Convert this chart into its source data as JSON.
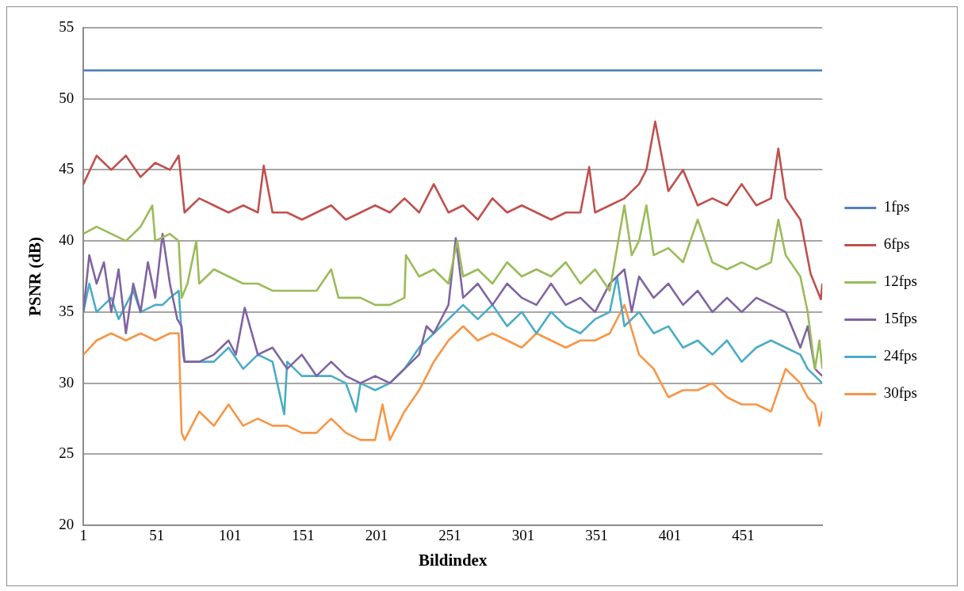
{
  "chart_data": {
    "type": "line",
    "xlabel": "Bildindex",
    "ylabel": "PSNR (dB)",
    "xlim": [
      1,
      505
    ],
    "xticks": [
      1,
      51,
      101,
      151,
      201,
      251,
      301,
      351,
      401,
      451
    ],
    "ylim": [
      20,
      55
    ],
    "yticks": [
      20,
      25,
      30,
      35,
      40,
      45,
      50,
      55
    ],
    "grid": "y",
    "legend": "right",
    "marker": "none",
    "line_style": "solid",
    "series": [
      {
        "name": "1fps",
        "color": "#4f81bd",
        "x": [
          1,
          505
        ],
        "values": [
          52,
          52
        ]
      },
      {
        "name": "6fps",
        "color": "#c0504d",
        "x": [
          1,
          10,
          20,
          30,
          40,
          50,
          60,
          66,
          70,
          80,
          90,
          100,
          110,
          120,
          124,
          130,
          140,
          150,
          160,
          170,
          180,
          190,
          200,
          210,
          220,
          230,
          240,
          250,
          260,
          270,
          280,
          290,
          300,
          310,
          320,
          330,
          340,
          346,
          350,
          360,
          370,
          380,
          385,
          391,
          400,
          410,
          420,
          430,
          440,
          450,
          460,
          470,
          475,
          480,
          490,
          497,
          504,
          505
        ],
        "values": [
          44,
          46,
          45,
          46,
          44.5,
          45.5,
          45,
          46,
          42,
          43,
          42.5,
          42,
          42.5,
          42,
          45.3,
          42,
          42,
          41.5,
          42,
          42.5,
          41.5,
          42,
          42.5,
          42,
          43,
          42,
          44,
          42,
          42.5,
          41.5,
          43,
          42,
          42.5,
          42,
          41.5,
          42,
          42,
          45.2,
          42,
          42.5,
          43,
          44,
          45,
          48.4,
          43.5,
          45,
          42.5,
          43,
          42.5,
          44,
          42.5,
          43,
          46.5,
          43,
          41.5,
          37.7,
          35.9,
          37
        ]
      },
      {
        "name": "12fps",
        "color": "#9bbb59",
        "x": [
          1,
          10,
          20,
          30,
          40,
          48,
          50,
          60,
          66,
          68,
          72,
          78,
          80,
          90,
          100,
          110,
          120,
          130,
          140,
          150,
          160,
          170,
          175,
          180,
          190,
          200,
          210,
          220,
          221,
          230,
          240,
          250,
          256,
          260,
          270,
          280,
          290,
          300,
          310,
          320,
          330,
          340,
          350,
          360,
          370,
          375,
          380,
          385,
          390,
          400,
          410,
          420,
          430,
          440,
          450,
          460,
          470,
          475,
          480,
          490,
          495,
          500,
          503,
          505
        ],
        "values": [
          40.5,
          41,
          40.5,
          40,
          41,
          42.5,
          40,
          40.5,
          40,
          36,
          37,
          40,
          37,
          38,
          37.5,
          37,
          37,
          36.5,
          36.5,
          36.5,
          36.5,
          38,
          36,
          36,
          36,
          35.5,
          35.5,
          36,
          39,
          37.5,
          38,
          37,
          40,
          37.5,
          38,
          37,
          38.5,
          37.5,
          38,
          37.5,
          38.5,
          37,
          38,
          36.5,
          42.5,
          39,
          40,
          42.5,
          39,
          39.5,
          38.5,
          41.5,
          38.5,
          38,
          38.5,
          38,
          38.5,
          41.5,
          39,
          37.5,
          35,
          31,
          33,
          31
        ]
      },
      {
        "name": "15fps",
        "color": "#8064a2",
        "x": [
          1,
          5,
          10,
          15,
          20,
          25,
          30,
          35,
          40,
          45,
          50,
          55,
          60,
          65,
          68,
          70,
          80,
          90,
          100,
          105,
          111,
          120,
          130,
          140,
          150,
          160,
          170,
          180,
          190,
          200,
          210,
          220,
          230,
          235,
          240,
          250,
          255,
          260,
          270,
          280,
          290,
          300,
          310,
          320,
          330,
          340,
          350,
          360,
          370,
          375,
          380,
          390,
          400,
          410,
          420,
          430,
          440,
          450,
          460,
          470,
          480,
          490,
          495,
          500,
          505
        ],
        "values": [
          35,
          39,
          37,
          38.5,
          35,
          38,
          33.5,
          37,
          35,
          38.5,
          36,
          40.5,
          37,
          34.5,
          34,
          31.5,
          31.5,
          32,
          33,
          32,
          35.3,
          32,
          32.5,
          31,
          32,
          30.5,
          31.5,
          30.5,
          30,
          30.5,
          30,
          31,
          32,
          34,
          33.5,
          35.5,
          40.2,
          36,
          37,
          35.5,
          37,
          36,
          35.5,
          37,
          35.5,
          36,
          35,
          37,
          38,
          35,
          37.5,
          36,
          37,
          35.5,
          36.5,
          35,
          36,
          35,
          36,
          35.5,
          35,
          32.5,
          34,
          31,
          30.5
        ]
      },
      {
        "name": "24fps",
        "color": "#4bacc6",
        "x": [
          1,
          5,
          10,
          20,
          25,
          30,
          35,
          40,
          50,
          55,
          60,
          66,
          69,
          70,
          80,
          90,
          100,
          110,
          120,
          130,
          138,
          140,
          150,
          160,
          170,
          180,
          187,
          190,
          200,
          210,
          220,
          230,
          240,
          250,
          260,
          270,
          280,
          290,
          300,
          310,
          320,
          330,
          340,
          350,
          360,
          365,
          370,
          380,
          390,
          400,
          410,
          420,
          430,
          440,
          450,
          460,
          470,
          480,
          490,
          495,
          500,
          505
        ],
        "values": [
          35,
          37,
          35,
          36,
          34.5,
          35.5,
          36.5,
          35,
          35.5,
          35.5,
          36,
          36.5,
          32,
          31.5,
          31.5,
          31.5,
          32.5,
          31,
          32,
          31.5,
          27.8,
          31.5,
          30.5,
          30.5,
          30.5,
          30,
          28,
          30,
          29.5,
          30,
          31,
          32.5,
          33.5,
          34.5,
          35.5,
          34.5,
          35.5,
          34,
          35,
          33.5,
          35,
          34,
          33.5,
          34.5,
          35,
          37.5,
          34,
          35,
          33.5,
          34,
          32.5,
          33,
          32,
          33,
          31.5,
          32.5,
          33,
          32.5,
          32,
          31,
          30.5,
          30
        ]
      },
      {
        "name": "30fps",
        "color": "#f79646",
        "x": [
          1,
          10,
          20,
          30,
          40,
          50,
          60,
          66,
          68,
          70,
          80,
          90,
          100,
          110,
          120,
          130,
          140,
          150,
          160,
          170,
          180,
          190,
          200,
          205,
          210,
          220,
          230,
          240,
          250,
          260,
          270,
          280,
          290,
          300,
          310,
          320,
          330,
          340,
          350,
          360,
          370,
          380,
          390,
          400,
          410,
          420,
          430,
          440,
          450,
          460,
          470,
          480,
          490,
          495,
          500,
          503,
          505
        ],
        "values": [
          32,
          33,
          33.5,
          33,
          33.5,
          33,
          33.5,
          33.5,
          26.5,
          26,
          28,
          27,
          28.5,
          27,
          27.5,
          27,
          27,
          26.5,
          26.5,
          27.5,
          26.5,
          26,
          26,
          28.5,
          26,
          28,
          29.5,
          31.5,
          33,
          34,
          33,
          33.5,
          33,
          32.5,
          33.5,
          33,
          32.5,
          33,
          33,
          33.5,
          35.5,
          32,
          31,
          29,
          29.5,
          29.5,
          30,
          29,
          28.5,
          28.5,
          28,
          31,
          30,
          29,
          28.5,
          27,
          28
        ]
      }
    ]
  }
}
